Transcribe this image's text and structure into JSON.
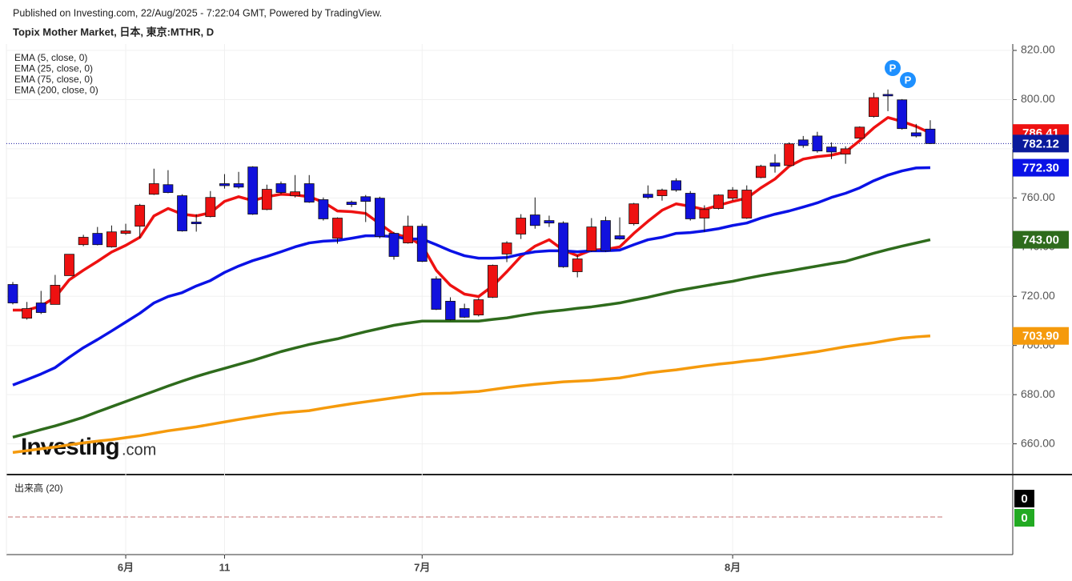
{
  "chart_data": {
    "type": "candlestick",
    "header": "Published on Investing.com, 22/Aug/2025 - 7:22:04 GMT, Powered by TradingView.",
    "title": "Topix Mother Market, 日本, 東京:MTHR, D",
    "watermark": {
      "name": "Investing",
      "suffix": ".com"
    },
    "up_color": "#ee1111",
    "down_color": "#1111dd",
    "categories": [
      null,
      null,
      null,
      null,
      null,
      null,
      null,
      null,
      "6月",
      null,
      null,
      null,
      null,
      null,
      null,
      "11",
      null,
      null,
      null,
      null,
      null,
      null,
      null,
      null,
      null,
      null,
      null,
      null,
      null,
      "7月",
      null,
      null,
      null,
      null,
      null,
      null,
      null,
      null,
      null,
      null,
      null,
      null,
      null,
      null,
      null,
      null,
      null,
      null,
      null,
      null,
      null,
      "8月",
      null,
      null,
      null,
      null,
      null,
      null,
      null,
      null,
      null,
      null,
      null,
      null,
      null,
      null
    ],
    "open": [
      724.8,
      711.1,
      717.3,
      716.7,
      728.4,
      741.0,
      745.6,
      740.1,
      745.6,
      748.5,
      761.5,
      765.4,
      760.9,
      750.2,
      752.4,
      765.8,
      765.8,
      772.6,
      755.3,
      765.8,
      760.9,
      765.8,
      759.3,
      743.6,
      758.3,
      760.5,
      759.9,
      745.6,
      741.7,
      748.5,
      727.1,
      718.0,
      715.0,
      712.4,
      719.6,
      737.2,
      745.3,
      753.1,
      750.8,
      749.8,
      730.0,
      738.5,
      750.8,
      744.6,
      749.5,
      761.5,
      760.9,
      767.0,
      761.9,
      751.8,
      755.7,
      759.9,
      751.8,
      768.3,
      774.2,
      773.2,
      783.6,
      785.2,
      780.7,
      777.8,
      784.3,
      793.1,
      802.1,
      799.9,
      786.5,
      788.0
    ],
    "high": [
      725.8,
      717.7,
      722.2,
      728.7,
      737.1,
      745.0,
      748.2,
      748.8,
      749.5,
      757.6,
      771.9,
      771.3,
      761.5,
      753.4,
      762.8,
      769.7,
      770.6,
      772.9,
      765.4,
      766.7,
      769.3,
      769.3,
      760.2,
      752.1,
      758.9,
      761.2,
      760.5,
      746.2,
      752.8,
      749.5,
      728.1,
      719.6,
      717.0,
      719.3,
      732.9,
      742.4,
      753.4,
      760.2,
      752.8,
      750.5,
      736.8,
      751.8,
      752.4,
      752.1,
      758.0,
      765.1,
      763.8,
      768.0,
      762.8,
      757.0,
      761.5,
      764.4,
      765.1,
      773.5,
      777.8,
      782.6,
      785.2,
      786.9,
      782.6,
      781.0,
      789.1,
      802.8,
      804.1,
      800.2,
      790.1,
      791.6
    ],
    "low": [
      716.7,
      710.5,
      712.8,
      716.7,
      728.4,
      740.4,
      740.7,
      739.8,
      745.0,
      743.6,
      761.2,
      761.9,
      746.3,
      746.3,
      752.1,
      763.8,
      763.8,
      753.1,
      755.0,
      761.5,
      760.2,
      758.0,
      750.8,
      741.4,
      756.3,
      750.2,
      743.6,
      734.9,
      741.4,
      733.9,
      714.4,
      710.2,
      711.2,
      711.8,
      719.3,
      733.9,
      743.3,
      747.5,
      748.2,
      731.6,
      727.7,
      738.1,
      738.1,
      743.0,
      748.8,
      759.6,
      758.9,
      762.5,
      750.8,
      746.2,
      755.3,
      758.9,
      751.5,
      768.0,
      770.3,
      772.9,
      780.4,
      778.4,
      775.8,
      773.9,
      784.0,
      792.7,
      795.3,
      787.8,
      784.6,
      781.9
    ],
    "close": [
      717.3,
      715.0,
      713.4,
      724.5,
      737.1,
      744.0,
      741.0,
      746.2,
      746.6,
      757.0,
      765.8,
      762.2,
      746.6,
      749.5,
      760.2,
      765.0,
      764.4,
      753.4,
      763.5,
      762.2,
      762.5,
      758.3,
      751.5,
      751.8,
      757.3,
      758.6,
      744.3,
      736.2,
      748.5,
      734.2,
      714.7,
      710.5,
      711.5,
      718.6,
      732.6,
      741.7,
      751.8,
      748.8,
      749.8,
      732.0,
      735.2,
      748.2,
      738.5,
      743.3,
      757.6,
      760.2,
      763.2,
      763.2,
      751.5,
      755.3,
      761.2,
      763.2,
      763.2,
      772.9,
      772.9,
      782.0,
      781.3,
      779.1,
      778.7,
      780.0,
      788.8,
      800.8,
      801.5,
      788.2,
      785.2,
      782.12
    ],
    "series": [
      {
        "name": "EMA (5, close, 0)",
        "color": "#ee1111",
        "values": [
          714.4,
          714.4,
          716.0,
          719.6,
          726.7,
          730.6,
          734.2,
          738.0,
          740.7,
          744.0,
          752.7,
          755.7,
          753.4,
          752.7,
          754.0,
          758.6,
          760.5,
          758.9,
          760.5,
          761.5,
          761.2,
          760.5,
          758.3,
          754.7,
          754.4,
          753.7,
          749.5,
          745.3,
          744.0,
          740.7,
          730.6,
          724.5,
          720.9,
          719.9,
          724.2,
          730.0,
          736.2,
          740.4,
          743.0,
          738.8,
          736.5,
          738.8,
          739.1,
          740.1,
          745.6,
          750.5,
          755.0,
          757.6,
          756.6,
          755.3,
          757.0,
          758.6,
          759.9,
          764.1,
          767.7,
          772.9,
          775.8,
          776.8,
          777.4,
          778.7,
          783.3,
          788.5,
          792.7,
          791.1,
          789.1,
          786.41
        ]
      },
      {
        "name": "EMA (25, close, 0)",
        "color": "#0a12e6",
        "values": [
          683.9,
          686.1,
          688.4,
          691.0,
          695.2,
          699.1,
          702.4,
          705.9,
          709.5,
          713.1,
          717.3,
          719.9,
          721.5,
          724.2,
          726.4,
          729.7,
          732.3,
          734.5,
          736.2,
          738.1,
          740.1,
          741.7,
          742.4,
          742.7,
          743.6,
          744.6,
          744.6,
          744.3,
          743.3,
          743.3,
          741.0,
          738.5,
          736.5,
          735.5,
          735.5,
          735.8,
          737.1,
          738.1,
          738.5,
          738.5,
          738.1,
          738.5,
          738.5,
          738.8,
          741.0,
          743.0,
          744.0,
          745.6,
          745.9,
          746.6,
          747.5,
          748.8,
          749.8,
          751.8,
          753.4,
          754.7,
          756.3,
          758.0,
          760.2,
          761.9,
          764.1,
          767.0,
          769.3,
          771.0,
          772.2,
          772.3
        ]
      },
      {
        "name": "EMA (75, close, 0)",
        "color": "#2e6b1c",
        "values": [
          662.7,
          664.2,
          665.8,
          667.3,
          669.0,
          670.8,
          673.0,
          675.1,
          677.2,
          679.3,
          681.4,
          683.5,
          685.5,
          687.4,
          689.1,
          690.7,
          692.3,
          693.9,
          695.7,
          697.5,
          699.0,
          700.4,
          701.6,
          702.7,
          704.2,
          705.6,
          706.9,
          708.2,
          709.1,
          709.9,
          709.9,
          709.9,
          709.9,
          709.9,
          710.6,
          711.2,
          712.2,
          713.1,
          713.8,
          714.4,
          715.1,
          715.7,
          716.5,
          717.3,
          718.5,
          719.6,
          720.9,
          722.2,
          723.2,
          724.2,
          725.2,
          726.1,
          727.3,
          728.4,
          729.4,
          730.3,
          731.3,
          732.3,
          733.3,
          734.2,
          735.9,
          737.5,
          739.0,
          740.4,
          741.7,
          743.0
        ]
      },
      {
        "name": "EMA (200, close, 0)",
        "color": "#f59a0c",
        "values": [
          656.5,
          657.2,
          658.0,
          658.7,
          659.6,
          660.4,
          661.1,
          661.7,
          662.5,
          663.3,
          664.3,
          665.3,
          666.1,
          666.9,
          667.9,
          668.9,
          669.9,
          670.8,
          671.7,
          672.5,
          673.0,
          673.5,
          674.5,
          675.4,
          676.3,
          677.1,
          677.9,
          678.7,
          679.5,
          680.3,
          680.5,
          680.6,
          681.0,
          681.3,
          682.1,
          682.9,
          683.6,
          684.2,
          684.7,
          685.2,
          685.5,
          685.8,
          686.3,
          686.8,
          687.8,
          688.8,
          689.5,
          690.1,
          690.9,
          691.7,
          692.4,
          693.0,
          693.7,
          694.3,
          695.1,
          695.9,
          696.7,
          697.5,
          698.5,
          699.5,
          700.3,
          701.1,
          702.1,
          703.0,
          703.5,
          703.9
        ]
      }
    ],
    "price_tags": [
      {
        "value": 786.41,
        "label": "786.41",
        "color": "#ee1111"
      },
      {
        "value": 782.12,
        "label": "782.12",
        "color": "#0a1a9c"
      },
      {
        "value": 772.3,
        "label": "772.30",
        "color": "#0a12e6"
      },
      {
        "value": 743.0,
        "label": "743.00",
        "color": "#2e6b1c"
      },
      {
        "value": 703.9,
        "label": "703.90",
        "color": "#f59a0c"
      }
    ],
    "last_price": 782.12,
    "markers": [
      "P",
      "P"
    ],
    "ylim": [
      647.5,
      822.6
    ],
    "yticks": [
      {
        "value": 660,
        "label": "660.00"
      },
      {
        "value": 680,
        "label": "680.00"
      },
      {
        "value": 700,
        "label": "700.00"
      },
      {
        "value": 720,
        "label": "720.00"
      },
      {
        "value": 740,
        "label": "740.00"
      },
      {
        "value": 760,
        "label": "760.00"
      },
      {
        "value": 780,
        "label": "780.00"
      },
      {
        "value": 800,
        "label": "800.00"
      },
      {
        "value": 820,
        "label": "820.00"
      }
    ],
    "grid": true,
    "volume_panel": {
      "title": "出来高 (20)",
      "tags": [
        {
          "value": 0,
          "label": "0",
          "color": "#000000"
        },
        {
          "value": 0,
          "label": "0",
          "color": "#22aa22"
        }
      ]
    }
  }
}
